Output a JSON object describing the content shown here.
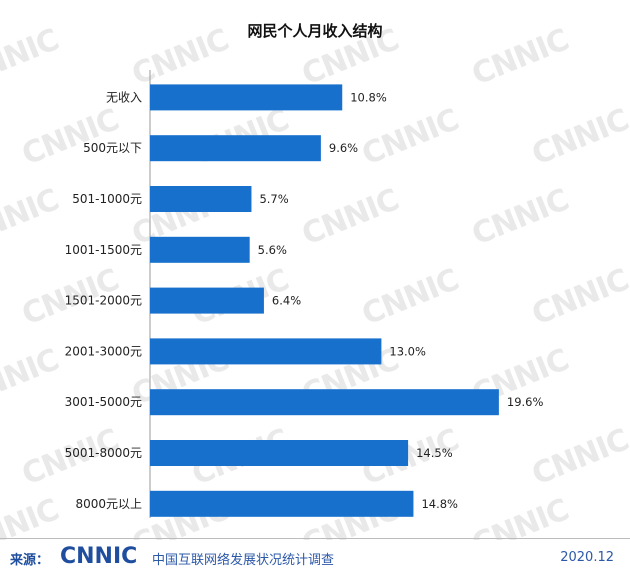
{
  "chart_data": {
    "type": "bar",
    "orientation": "horizontal",
    "title": "网民个人月收入结构",
    "categories": [
      "无收入",
      "500元以下",
      "501-1000元",
      "1001-1500元",
      "1501-2000元",
      "2001-3000元",
      "3001-5000元",
      "5001-8000元",
      "8000元以上"
    ],
    "values": [
      10.8,
      9.6,
      5.7,
      5.6,
      6.4,
      13.0,
      19.6,
      14.5,
      14.8
    ],
    "value_labels": [
      "10.8%",
      "9.6%",
      "5.7%",
      "5.6%",
      "6.4%",
      "13.0%",
      "19.6%",
      "14.5%",
      "14.8%"
    ],
    "xlim": [
      0,
      20
    ],
    "grid": false,
    "legend": "none",
    "bar_color": "#1670cc"
  },
  "watermark": "CNNIC",
  "footer": {
    "source_label": "来源：",
    "logo_text": "CNNIC",
    "org_name": "中国互联网络发展状况统计调查",
    "date": "2020.12"
  },
  "colors": {
    "bar": "#1670cc",
    "logo": "#1f4e9e",
    "watermark": "#e9e9e9"
  }
}
